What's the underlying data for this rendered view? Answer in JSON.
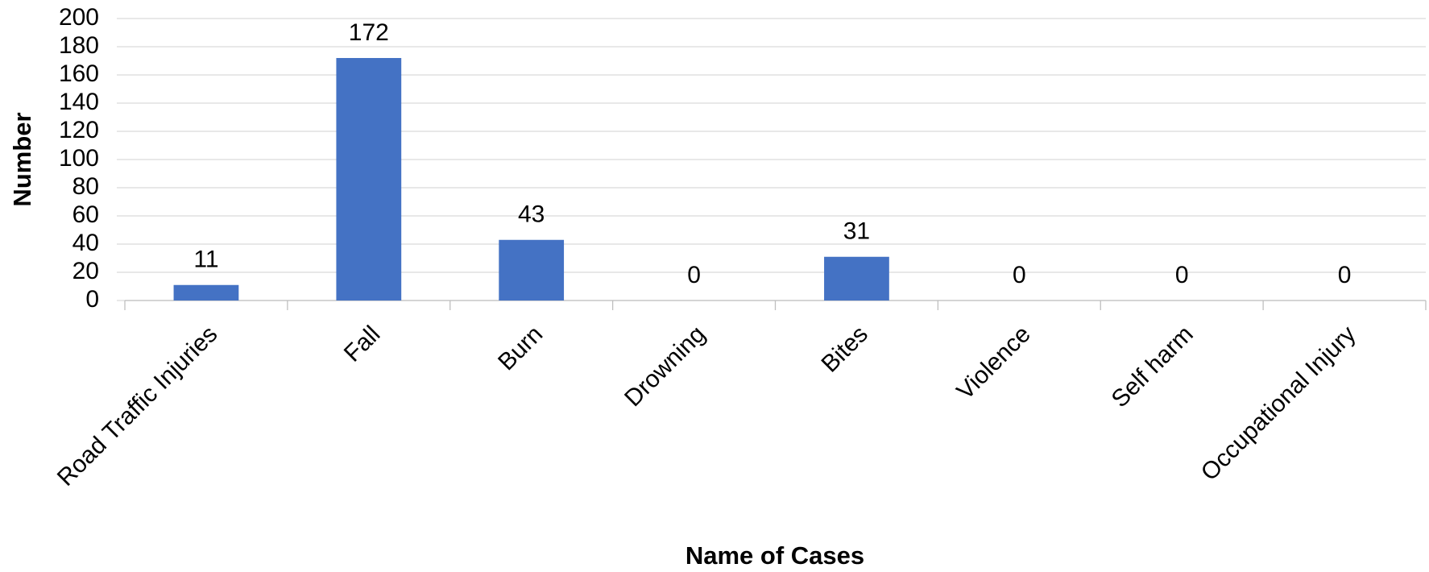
{
  "chart_data": {
    "type": "bar",
    "categories": [
      "Road Traffic Injuries",
      "Fall",
      "Burn",
      "Drowning",
      "Bites",
      "Violence",
      "Self harm",
      "Occupational Injury"
    ],
    "values": [
      11,
      172,
      43,
      0,
      31,
      0,
      0,
      0
    ],
    "color": "#4472c4",
    "x_label": "Name of Cases",
    "y_label": "Number",
    "ylim": [
      0,
      200
    ],
    "yticks": [
      0,
      20,
      40,
      60,
      80,
      100,
      120,
      140,
      160,
      180,
      200
    ],
    "grid": true
  }
}
